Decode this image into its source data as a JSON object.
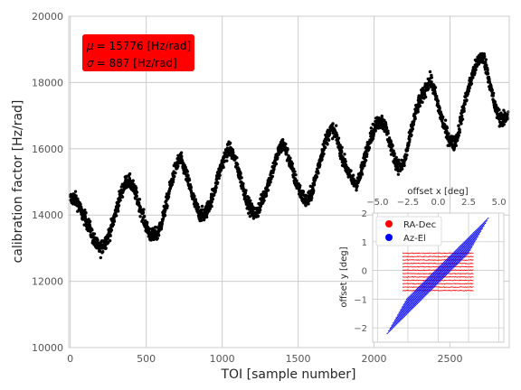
{
  "chart_data": [
    {
      "type": "scatter",
      "xlabel": "TOI [sample number]",
      "ylabel": "calibration factor [Hz/rad]",
      "xlim": [
        -10,
        2890
      ],
      "ylim": [
        10000,
        20000
      ],
      "xticks": [
        0,
        500,
        1000,
        1500,
        2000,
        2500
      ],
      "yticks": [
        10000,
        12000,
        14000,
        16000,
        18000,
        20000
      ],
      "grid": true,
      "marker_color": "#000000",
      "series": [
        {
          "description_of_trend": "oscillating around a rising baseline",
          "points": [
            [
              0,
              14480
            ],
            [
              25,
              14520
            ],
            [
              50,
              14380
            ],
            [
              75,
              14050
            ],
            [
              100,
              13880
            ],
            [
              125,
              13650
            ],
            [
              150,
              13320
            ],
            [
              175,
              13080
            ],
            [
              200,
              12980
            ],
            [
              225,
              13150
            ],
            [
              250,
              13350
            ],
            [
              275,
              13680
            ],
            [
              300,
              14100
            ],
            [
              325,
              14520
            ],
            [
              350,
              14850
            ],
            [
              375,
              15050
            ],
            [
              400,
              14950
            ],
            [
              425,
              14720
            ],
            [
              450,
              14380
            ],
            [
              475,
              14020
            ],
            [
              500,
              13650
            ],
            [
              525,
              13420
            ],
            [
              550,
              13350
            ],
            [
              575,
              13450
            ],
            [
              600,
              13750
            ],
            [
              625,
              14200
            ],
            [
              650,
              14680
            ],
            [
              675,
              15150
            ],
            [
              700,
              15520
            ],
            [
              725,
              15700
            ],
            [
              750,
              15400
            ],
            [
              775,
              15050
            ],
            [
              800,
              14650
            ],
            [
              825,
              14280
            ],
            [
              850,
              14050
            ],
            [
              875,
              13980
            ],
            [
              900,
              14150
            ],
            [
              925,
              14420
            ],
            [
              950,
              14780
            ],
            [
              975,
              15200
            ],
            [
              1000,
              15550
            ],
            [
              1025,
              15850
            ],
            [
              1050,
              16000
            ],
            [
              1075,
              15800
            ],
            [
              1100,
              15450
            ],
            [
              1125,
              15050
            ],
            [
              1150,
              14650
            ],
            [
              1175,
              14300
            ],
            [
              1200,
              14080
            ],
            [
              1225,
              14050
            ],
            [
              1250,
              14280
            ],
            [
              1275,
              14600
            ],
            [
              1300,
              14900
            ],
            [
              1325,
              15250
            ],
            [
              1350,
              15600
            ],
            [
              1375,
              15950
            ],
            [
              1400,
              16150
            ],
            [
              1425,
              15900
            ],
            [
              1450,
              15550
            ],
            [
              1475,
              15150
            ],
            [
              1500,
              14850
            ],
            [
              1525,
              14600
            ],
            [
              1550,
              14420
            ],
            [
              1575,
              14500
            ],
            [
              1600,
              14850
            ],
            [
              1625,
              15300
            ],
            [
              1650,
              15750
            ],
            [
              1675,
              16150
            ],
            [
              1700,
              16450
            ],
            [
              1725,
              16600
            ],
            [
              1750,
              16400
            ],
            [
              1775,
              16000
            ],
            [
              1800,
              15650
            ],
            [
              1825,
              15350
            ],
            [
              1850,
              15100
            ],
            [
              1875,
              14950
            ],
            [
              1900,
              15050
            ],
            [
              1925,
              15450
            ],
            [
              1950,
              15950
            ],
            [
              1975,
              16350
            ],
            [
              2000,
              16600
            ],
            [
              2025,
              16800
            ],
            [
              2050,
              16850
            ],
            [
              2075,
              16650
            ],
            [
              2100,
              16250
            ],
            [
              2125,
              15850
            ],
            [
              2150,
              15550
            ],
            [
              2175,
              15400
            ],
            [
              2200,
              15600
            ],
            [
              2225,
              16100
            ],
            [
              2250,
              16650
            ],
            [
              2275,
              17100
            ],
            [
              2300,
              17450
            ],
            [
              2325,
              17650
            ],
            [
              2350,
              17950
            ],
            [
              2375,
              18050
            ],
            [
              2400,
              17700
            ],
            [
              2425,
              17250
            ],
            [
              2450,
              16850
            ],
            [
              2475,
              16500
            ],
            [
              2500,
              16250
            ],
            [
              2525,
              16150
            ],
            [
              2550,
              16400
            ],
            [
              2575,
              16950
            ],
            [
              2600,
              17450
            ],
            [
              2625,
              17850
            ],
            [
              2650,
              18250
            ],
            [
              2675,
              18550
            ],
            [
              2700,
              18800
            ],
            [
              2725,
              18700
            ],
            [
              2750,
              18250
            ],
            [
              2775,
              17700
            ],
            [
              2800,
              17200
            ],
            [
              2825,
              16950
            ],
            [
              2850,
              16850
            ],
            [
              2875,
              17000
            ]
          ]
        }
      ],
      "annotations": [
        {
          "text": "$\\mu$ = 15776 [Hz/rad]",
          "box_color": "#ff0000"
        },
        {
          "text": "$\\sigma$ = 887 [Hz/rad]",
          "box_color": "#ff0000"
        }
      ]
    },
    {
      "type": "scatter",
      "xlabel": "offset x [deg]",
      "ylabel": "offset y [deg]",
      "xlim": [
        -5.4,
        5.4
      ],
      "ylim": [
        -2.5,
        2
      ],
      "xticks": [
        -5.0,
        -2.5,
        0.0,
        2.5,
        5.0
      ],
      "xtick_labels": [
        "−5.0",
        "−2.5",
        "0.0",
        "2.5",
        "5.0"
      ],
      "yticks": [
        -2,
        -1,
        0,
        1,
        2
      ],
      "ytick_labels": [
        "−2",
        "−1",
        "0",
        "1",
        "2"
      ],
      "legend_position": "top-left",
      "series": [
        {
          "name": "RA-Dec",
          "color": "#ff0000",
          "x_range": [
            -2.9,
            2.9
          ],
          "y_range": [
            -0.7,
            0.6
          ],
          "rows": 12
        },
        {
          "name": "Az-El",
          "color": "#0000ff",
          "x_range": [
            -4.2,
            4.2
          ],
          "y_range_at_left": [
            -2.2,
            -1.0
          ],
          "slope": 0.42,
          "rows": 14
        }
      ]
    }
  ],
  "main_annotation_text": {
    "mu": "= 15776 [Hz/rad]",
    "sigma": "= 887 [Hz/rad]"
  }
}
